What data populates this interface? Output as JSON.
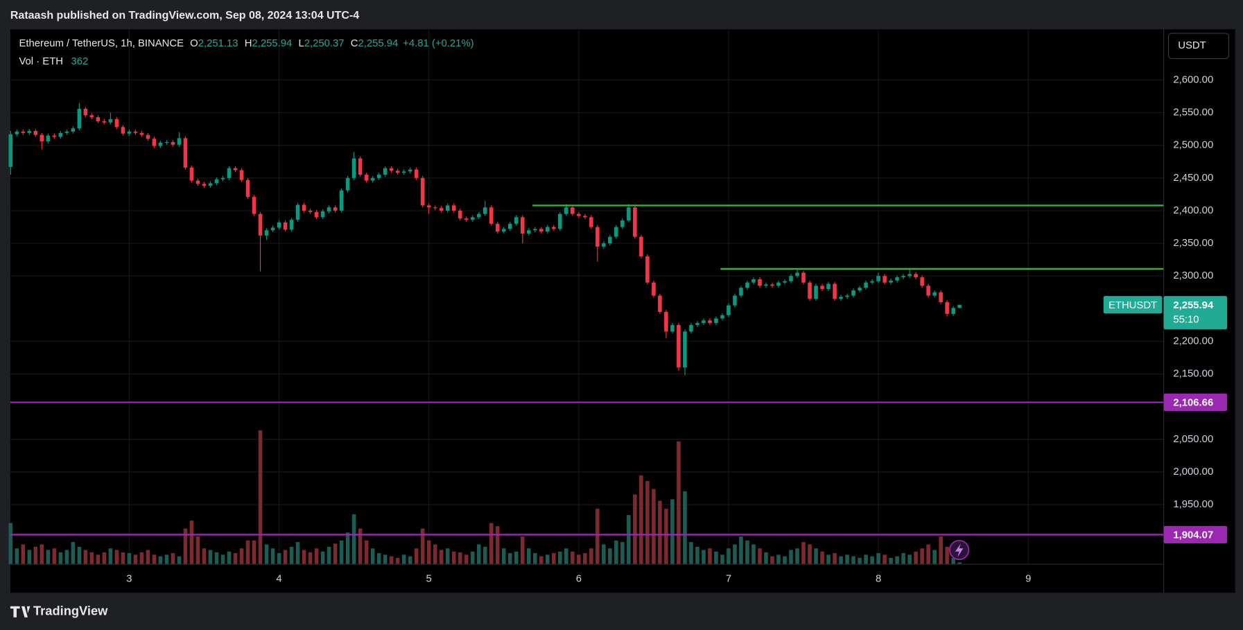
{
  "header": {
    "publisher": "Rataash published on TradingView.com, Sep 08, 2024 13:04 UTC-4"
  },
  "footer": {
    "brand": "TradingView"
  },
  "toolbar": {
    "currency": "USDT"
  },
  "chart_data": {
    "type": "candlestick",
    "legend": {
      "symbol": "Ethereum / TetherUS, 1h, BINANCE",
      "open": {
        "name": "O",
        "value": 2251.13,
        "label": "2,251.13"
      },
      "high": {
        "name": "H",
        "value": 2255.94,
        "label": "2,255.94"
      },
      "low": {
        "name": "L",
        "value": 2250.37,
        "label": "2,250.37"
      },
      "close": {
        "name": "C",
        "value": 2255.94,
        "label": "2,255.94"
      },
      "change": "+4.81 (+0.21%)",
      "volume_name": "Vol · ETH",
      "volume": 362
    },
    "up_color": "#089981",
    "down_color": "#f23645",
    "volume_up_color": "#1b5d55",
    "volume_down_color": "#7c2a2d",
    "grid": true,
    "xlim": [
      -0.05,
      184.7
    ],
    "xticks": [
      {
        "value": 19,
        "label": "3"
      },
      {
        "value": 43,
        "label": "4"
      },
      {
        "value": 67,
        "label": "5"
      },
      {
        "value": 91,
        "label": "6"
      },
      {
        "value": 115,
        "label": "7"
      },
      {
        "value": 139,
        "label": "8"
      },
      {
        "value": 163,
        "label": "9"
      }
    ],
    "ylim": [
      1858.8,
      2677.6
    ],
    "yticks": [
      {
        "value": 1950,
        "label": "1,950.00"
      },
      {
        "value": 2000,
        "label": "2,000.00"
      },
      {
        "value": 2050,
        "label": "2,050.00"
      },
      {
        "value": 2150,
        "label": "2,150.00"
      },
      {
        "value": 2200,
        "label": "2,200.00"
      },
      {
        "value": 2300,
        "label": "2,300.00"
      },
      {
        "value": 2350,
        "label": "2,350.00"
      },
      {
        "value": 2400,
        "label": "2,400.00"
      },
      {
        "value": 2450,
        "label": "2,450.00"
      },
      {
        "value": 2500,
        "label": "2,500.00"
      },
      {
        "value": 2550,
        "label": "2,550.00"
      },
      {
        "value": 2600,
        "label": "2,600.00"
      }
    ],
    "volume_ylim": [
      0,
      101250
    ],
    "open": [
      2467,
      2517,
      2521,
      2519,
      2522,
      2516,
      2506,
      2515,
      2513,
      2519,
      2521,
      2526,
      2556,
      2546,
      2543,
      2537,
      2535,
      2540,
      2528,
      2518,
      2521,
      2519,
      2516,
      2510,
      2499,
      2504,
      2505,
      2501,
      2511,
      2466,
      2446,
      2441,
      2438,
      2442,
      2448,
      2450,
      2465,
      2462,
      2447,
      2421,
      2395,
      2362,
      2370,
      2374,
      2382,
      2371,
      2386,
      2409,
      2400,
      2398,
      2390,
      2399,
      2405,
      2400,
      2431,
      2450,
      2480,
      2455,
      2446,
      2450,
      2455,
      2465,
      2461,
      2458,
      2460,
      2463,
      2450,
      2408,
      2405,
      2404,
      2400,
      2408,
      2400,
      2388,
      2386,
      2390,
      2395,
      2405,
      2380,
      2368,
      2372,
      2380,
      2390,
      2365,
      2370,
      2372,
      2368,
      2375,
      2372,
      2395,
      2405,
      2395,
      2392,
      2390,
      2375,
      2345,
      2350,
      2360,
      2375,
      2385,
      2405,
      2360,
      2330,
      2290,
      2270,
      2245,
      2215,
      2225,
      2160,
      2215,
      2225,
      2228,
      2232,
      2228,
      2235,
      2240,
      2255,
      2270,
      2282,
      2290,
      2295,
      2285,
      2287,
      2285,
      2290,
      2292,
      2300,
      2305,
      2290,
      2265,
      2285,
      2280,
      2288,
      2265,
      2268,
      2270,
      2278,
      2282,
      2290,
      2292,
      2300,
      2290,
      2293,
      2298,
      2300,
      2303,
      2298,
      2285,
      2270,
      2275,
      2260,
      2242,
      2251.13
    ],
    "high": [
      2522,
      2524,
      2524,
      2525,
      2525,
      2519,
      2518,
      2518,
      2522,
      2524,
      2529,
      2565,
      2559,
      2549,
      2546,
      2540,
      2550,
      2543,
      2531,
      2524,
      2524,
      2522,
      2519,
      2513,
      2507,
      2508,
      2508,
      2520,
      2514,
      2469,
      2449,
      2444,
      2445,
      2451,
      2453,
      2468,
      2468,
      2465,
      2450,
      2424,
      2398,
      2373,
      2377,
      2385,
      2385,
      2389,
      2412,
      2412,
      2403,
      2401,
      2402,
      2408,
      2408,
      2434,
      2453,
      2490,
      2483,
      2458,
      2453,
      2458,
      2468,
      2468,
      2464,
      2463,
      2466,
      2466,
      2453,
      2411,
      2408,
      2407,
      2411,
      2411,
      2403,
      2391,
      2393,
      2398,
      2415,
      2408,
      2383,
      2375,
      2383,
      2393,
      2393,
      2373,
      2375,
      2375,
      2378,
      2378,
      2398,
      2410,
      2408,
      2398,
      2395,
      2393,
      2378,
      2353,
      2363,
      2378,
      2388,
      2410,
      2408,
      2363,
      2333,
      2293,
      2273,
      2248,
      2228,
      2228,
      2218,
      2228,
      2231,
      2235,
      2235,
      2238,
      2243,
      2258,
      2273,
      2285,
      2293,
      2298,
      2298,
      2290,
      2290,
      2293,
      2295,
      2303,
      2310,
      2308,
      2293,
      2288,
      2288,
      2291,
      2291,
      2271,
      2273,
      2281,
      2285,
      2293,
      2295,
      2305,
      2303,
      2296,
      2301,
      2303,
      2310,
      2306,
      2301,
      2288,
      2278,
      2278,
      2263,
      2254,
      2255.94
    ],
    "low": [
      2455,
      2514,
      2516,
      2516,
      2513,
      2494,
      2503,
      2510,
      2510,
      2516,
      2518,
      2523,
      2543,
      2540,
      2534,
      2532,
      2532,
      2525,
      2515,
      2515,
      2516,
      2513,
      2507,
      2496,
      2496,
      2501,
      2498,
      2498,
      2463,
      2443,
      2438,
      2435,
      2435,
      2439,
      2445,
      2447,
      2459,
      2444,
      2418,
      2392,
      2307,
      2355,
      2367,
      2371,
      2368,
      2368,
      2383,
      2397,
      2395,
      2387,
      2387,
      2396,
      2397,
      2397,
      2428,
      2447,
      2452,
      2443,
      2443,
      2447,
      2452,
      2458,
      2455,
      2455,
      2457,
      2447,
      2405,
      2395,
      2401,
      2397,
      2397,
      2397,
      2385,
      2383,
      2383,
      2387,
      2392,
      2377,
      2365,
      2365,
      2369,
      2377,
      2350,
      2362,
      2367,
      2365,
      2365,
      2369,
      2369,
      2392,
      2392,
      2389,
      2387,
      2372,
      2322,
      2342,
      2347,
      2357,
      2372,
      2382,
      2357,
      2327,
      2287,
      2267,
      2242,
      2205,
      2212,
      2155,
      2148,
      2212,
      2222,
      2225,
      2225,
      2225,
      2232,
      2237,
      2252,
      2267,
      2279,
      2287,
      2282,
      2282,
      2282,
      2282,
      2287,
      2289,
      2297,
      2287,
      2262,
      2262,
      2277,
      2277,
      2262,
      2262,
      2265,
      2267,
      2275,
      2279,
      2287,
      2289,
      2287,
      2287,
      2290,
      2295,
      2297,
      2295,
      2282,
      2267,
      2267,
      2257,
      2238,
      2239,
      2250.37
    ],
    "close": [
      2517,
      2521,
      2519,
      2522,
      2516,
      2506,
      2515,
      2513,
      2519,
      2521,
      2526,
      2556,
      2546,
      2543,
      2537,
      2535,
      2540,
      2528,
      2518,
      2521,
      2519,
      2516,
      2510,
      2499,
      2504,
      2505,
      2501,
      2511,
      2466,
      2446,
      2441,
      2438,
      2442,
      2448,
      2450,
      2465,
      2462,
      2447,
      2421,
      2395,
      2362,
      2370,
      2374,
      2382,
      2371,
      2386,
      2409,
      2400,
      2398,
      2390,
      2399,
      2405,
      2400,
      2431,
      2450,
      2480,
      2455,
      2446,
      2450,
      2455,
      2465,
      2461,
      2458,
      2460,
      2463,
      2450,
      2408,
      2405,
      2404,
      2400,
      2408,
      2400,
      2388,
      2386,
      2390,
      2395,
      2405,
      2380,
      2368,
      2372,
      2380,
      2390,
      2365,
      2370,
      2372,
      2368,
      2375,
      2372,
      2395,
      2405,
      2395,
      2392,
      2390,
      2375,
      2345,
      2350,
      2360,
      2375,
      2385,
      2405,
      2360,
      2330,
      2290,
      2270,
      2245,
      2215,
      2225,
      2160,
      2215,
      2225,
      2228,
      2232,
      2228,
      2235,
      2240,
      2255,
      2270,
      2282,
      2290,
      2295,
      2285,
      2287,
      2285,
      2290,
      2292,
      2300,
      2305,
      2290,
      2265,
      2285,
      2280,
      2288,
      2265,
      2268,
      2270,
      2278,
      2282,
      2290,
      2292,
      2300,
      2290,
      2293,
      2298,
      2300,
      2303,
      2298,
      2285,
      2270,
      2275,
      2260,
      2242,
      2251.13,
      2255.94
    ],
    "volume": [
      7800,
      3000,
      3750,
      2700,
      3300,
      3750,
      2700,
      3000,
      2250,
      2700,
      4200,
      3300,
      2700,
      2250,
      1800,
      2250,
      3000,
      2700,
      2250,
      2100,
      1800,
      2250,
      2700,
      1800,
      1500,
      1800,
      2100,
      1500,
      6750,
      8250,
      5250,
      3000,
      2700,
      2250,
      1800,
      2400,
      2100,
      3000,
      4500,
      4500,
      25350,
      3750,
      3000,
      2100,
      2700,
      3300,
      4200,
      2700,
      2250,
      3000,
      2400,
      3300,
      3900,
      4500,
      6000,
      9450,
      6750,
      4500,
      3000,
      2100,
      1800,
      1500,
      1200,
      1800,
      1500,
      3000,
      6750,
      4500,
      3750,
      2700,
      3000,
      2400,
      2250,
      1800,
      2400,
      3750,
      3300,
      7800,
      7200,
      3000,
      2100,
      2400,
      5250,
      3000,
      2100,
      1500,
      1800,
      2100,
      2400,
      3000,
      2400,
      1800,
      2100,
      3000,
      10500,
      3750,
      3000,
      4500,
      4200,
      9300,
      13200,
      16800,
      15750,
      14250,
      12000,
      10500,
      12300,
      23250,
      13800,
      4200,
      3300,
      2700,
      3000,
      2400,
      1800,
      3000,
      3750,
      5250,
      4500,
      3750,
      3000,
      2250,
      1500,
      1800,
      1500,
      2700,
      3000,
      4200,
      3750,
      3000,
      2400,
      1800,
      2100,
      1500,
      1800,
      1500,
      1200,
      1800,
      1500,
      2100,
      1800,
      1200,
      1500,
      2100,
      1800,
      2400,
      3000,
      3750,
      2700,
      5250,
      3300,
      1200,
      362
    ],
    "rays": [
      {
        "value": 2408,
        "start": 83.6,
        "color": "#22c02f"
      },
      {
        "value": 2311,
        "start": 113.7,
        "color": "#22c02f"
      }
    ],
    "levels": [
      {
        "value": 2106.66,
        "label": "2,106.66",
        "color": "#9c27b0"
      },
      {
        "value": 1904.07,
        "label": "1,904.07",
        "color": "#9c27b0"
      }
    ],
    "last_price": {
      "symbol": "ETHUSDT",
      "value": 2255.94,
      "label": "2,255.94",
      "countdown": "55:10",
      "color": "#22ab94"
    }
  }
}
